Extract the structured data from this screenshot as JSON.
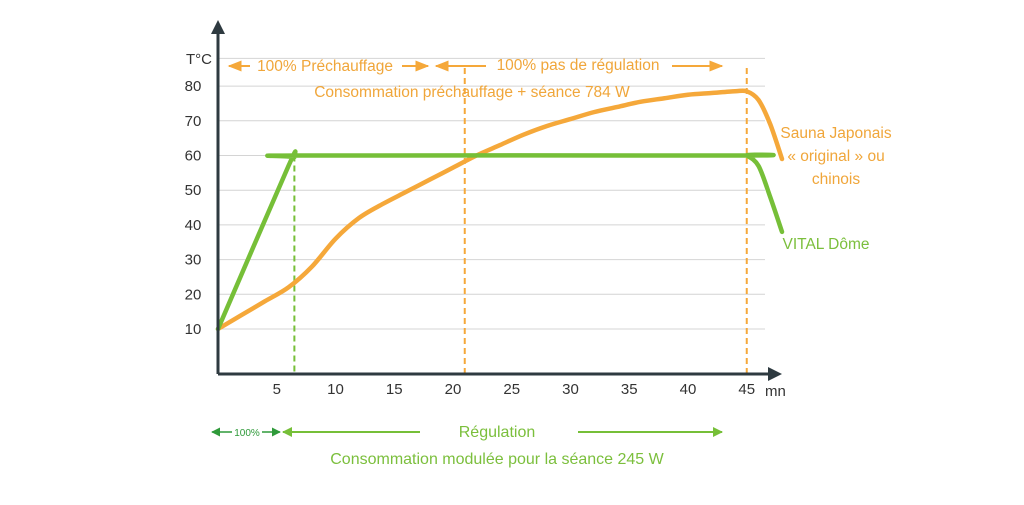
{
  "chart_data": {
    "type": "line",
    "ylabel": "T°C",
    "xlabel": "mn",
    "x_ticks": [
      5,
      10,
      15,
      20,
      25,
      30,
      35,
      40,
      45
    ],
    "y_ticks": [
      10,
      20,
      30,
      40,
      50,
      60,
      70,
      80
    ],
    "grid": true,
    "series": [
      {
        "name": "Sauna Japonais « original » ou chinois",
        "label_lines": [
          "Sauna Japonais",
          "« original » ou",
          "chinois"
        ],
        "color": "#f5a83a",
        "x": [
          0,
          2,
          4,
          6,
          8,
          10,
          12,
          14,
          16,
          18,
          20,
          22,
          24,
          26,
          28,
          30,
          32,
          34,
          36,
          38,
          40,
          42,
          44,
          45,
          46,
          47,
          48
        ],
        "y": [
          10,
          14,
          18,
          22,
          28,
          36,
          42,
          46,
          49.5,
          53,
          56.5,
          60,
          63,
          66,
          68.5,
          70.5,
          72.5,
          74,
          75.5,
          76.5,
          77.5,
          78,
          78.5,
          78.5,
          76,
          69,
          59
        ]
      },
      {
        "name": "VITAL Dôme",
        "color": "#76bf38",
        "x": [
          0,
          6,
          6.5,
          7,
          44.5,
          45,
          46,
          47,
          48
        ],
        "y": [
          10,
          57,
          59.5,
          60,
          60,
          60,
          57,
          48,
          38
        ]
      }
    ],
    "vlines": [
      {
        "x": 6.5,
        "color": "#76bf38"
      },
      {
        "x": 21,
        "color": "#f5a83a"
      },
      {
        "x": 45,
        "color": "#f5a83a"
      }
    ]
  },
  "annotations": {
    "prechauffage": "100% Préchauffage",
    "pas_regulation": "100% pas de régulation",
    "conso_prechauffage": "Consommation préchauffage + séance 784 W",
    "pct_100": "100%",
    "regulation": "Régulation",
    "conso_modulee": "Consommation modulée pour la séance 245 W"
  },
  "colors": {
    "axis": "#2e3a40",
    "grid": "#d4d4d4",
    "orange": "#f5a83a",
    "green": "#76bf38",
    "dark_green": "#2f9a3a"
  }
}
